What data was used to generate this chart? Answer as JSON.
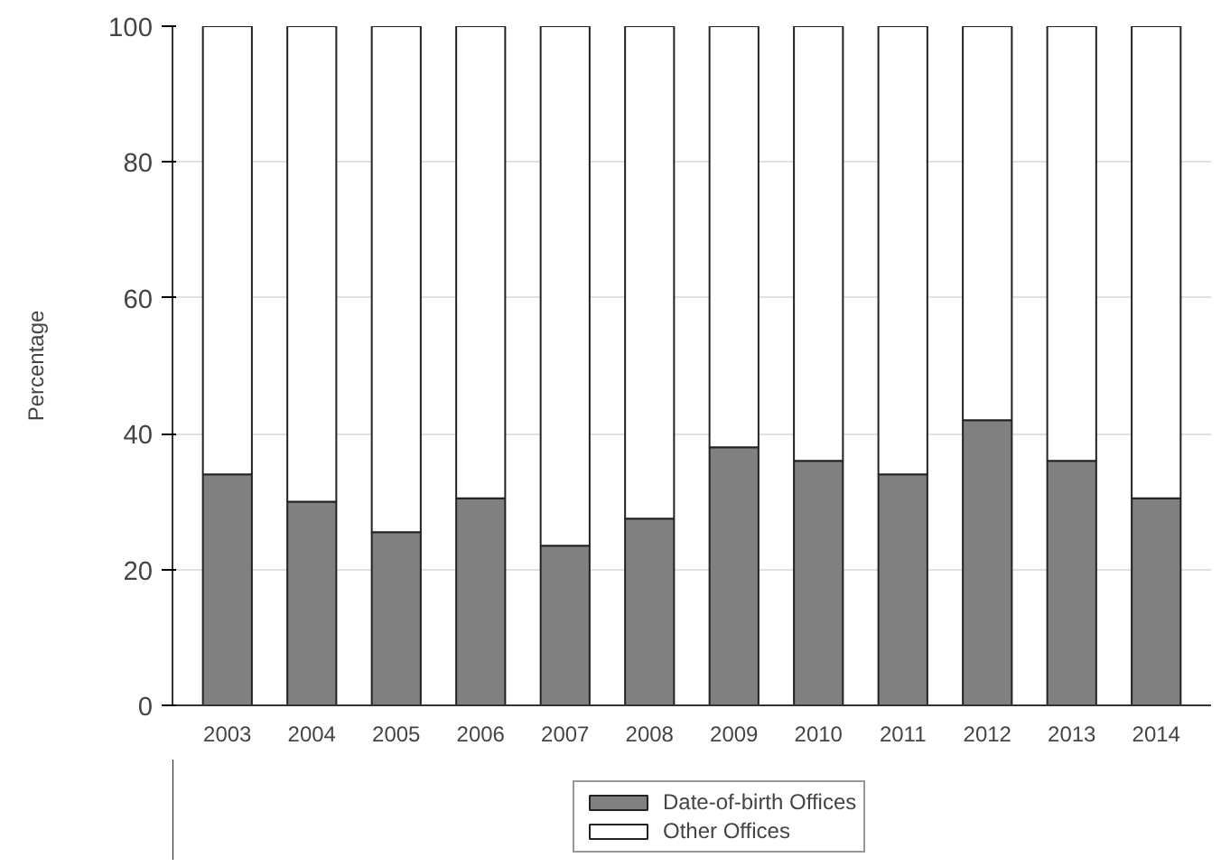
{
  "chart_data": {
    "type": "bar",
    "stacked": true,
    "ylabel": "Percentage",
    "categories": [
      "2003",
      "2004",
      "2005",
      "2006",
      "2007",
      "2008",
      "2009",
      "2010",
      "2011",
      "2012",
      "2013",
      "2014"
    ],
    "series": [
      {
        "name": "Date-of-birth Offices",
        "color": "#808080",
        "values": [
          34,
          30,
          25.5,
          30.5,
          23.5,
          27.5,
          38,
          36,
          34,
          42,
          36,
          30.5
        ]
      },
      {
        "name": "Other Offices",
        "color": "#ffffff",
        "values": [
          66,
          70,
          74.5,
          69.5,
          76.5,
          72.5,
          62,
          64,
          66,
          58,
          64,
          69.5
        ]
      }
    ],
    "ylim": [
      0,
      100
    ],
    "yticks": [
      0,
      20,
      40,
      60,
      80,
      100
    ],
    "grid": "y",
    "legend": "bottom"
  }
}
